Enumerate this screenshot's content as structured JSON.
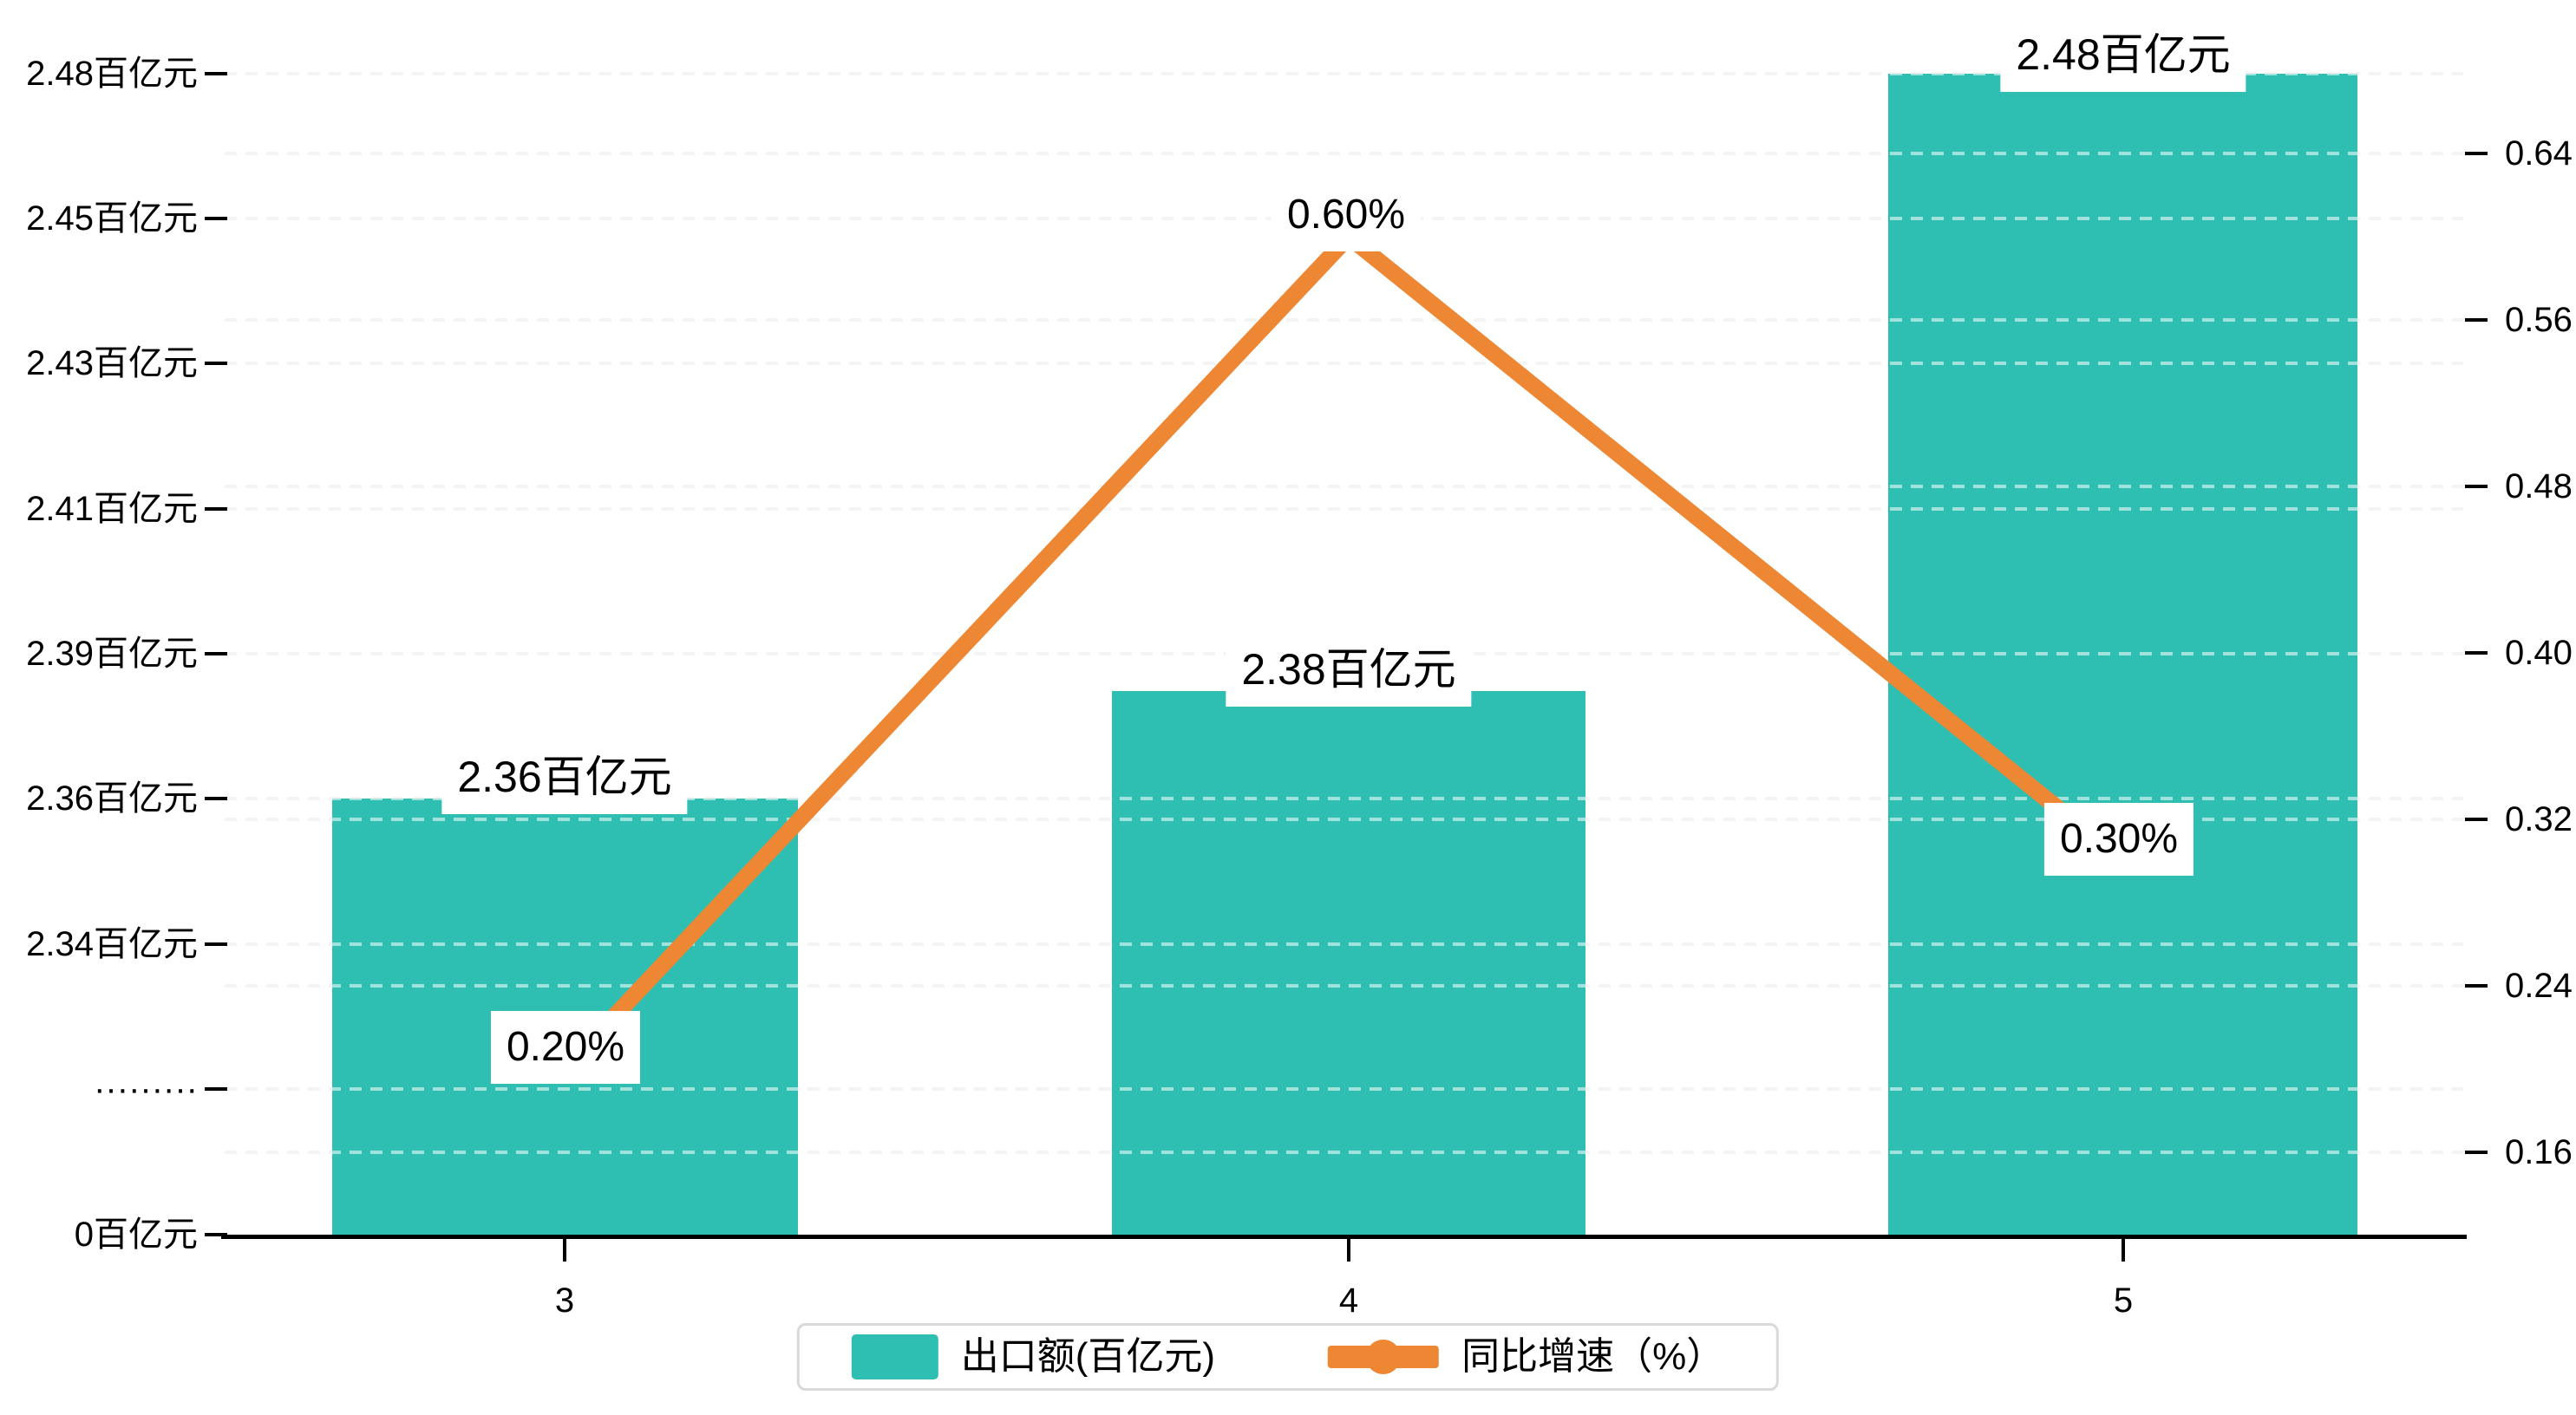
{
  "colors": {
    "bar": "#2FBEB2",
    "line": "#ED8733",
    "grid": "#e7e7e7",
    "axis": "#000000",
    "legend_border": "#d9d9d9"
  },
  "left_axis": {
    "tick_labels": [
      "2.48百亿元",
      "2.45百亿元",
      "2.43百亿元",
      "2.41百亿元",
      "2.39百亿元",
      "2.36百亿元",
      "2.34百亿元",
      "·········",
      "0百亿元"
    ]
  },
  "right_axis": {
    "tick_labels": [
      "0.64",
      "0.56",
      "0.48",
      "0.40",
      "0.32",
      "0.24",
      "0.16"
    ]
  },
  "x_axis": {
    "tick_labels": [
      "3",
      "4",
      "5"
    ]
  },
  "bar_value_labels": [
    "2.36百亿元",
    "2.38百亿元",
    "2.48百亿元"
  ],
  "line_value_labels": [
    "0.20%",
    "0.60%",
    "0.30%"
  ],
  "legend": {
    "items": [
      {
        "label": "出口额(百亿元)",
        "marker": "bar-swatch"
      },
      {
        "label": "同比增速（%）",
        "marker": "line-dot"
      }
    ]
  },
  "chart_data": {
    "type": "bar+line",
    "categories": [
      "3",
      "4",
      "5"
    ],
    "series": [
      {
        "name": "出口额(百亿元)",
        "type": "bar",
        "axis": "left",
        "unit": "百亿元",
        "values": [
          2.36,
          2.38,
          2.48
        ]
      },
      {
        "name": "同比增速（%）",
        "type": "line",
        "axis": "right",
        "unit": "%",
        "values": [
          0.2,
          0.6,
          0.3
        ]
      }
    ],
    "title": "",
    "xlabel": "",
    "ylabel_left": "出口额(百亿元)",
    "ylabel_right": "同比增速（%）",
    "left_axis_ticks_shown": [
      "2.48百亿元",
      "2.45百亿元",
      "2.43百亿元",
      "2.41百亿元",
      "2.39百亿元",
      "2.36百亿元",
      "2.34百亿元",
      "·········",
      "0百亿元"
    ],
    "right_axis_ticks_shown": [
      0.64,
      0.56,
      0.48,
      0.4,
      0.32,
      0.24,
      0.16
    ],
    "left_axis_broken": true,
    "grid": "dashed horizontal, both axes interleaved",
    "legend_position": "bottom-center"
  }
}
